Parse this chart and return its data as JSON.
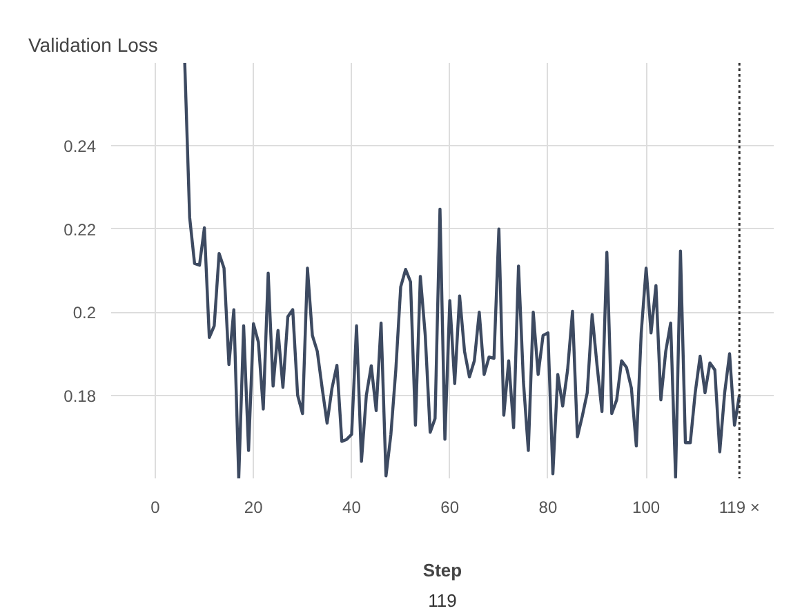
{
  "chart_data": {
    "type": "line",
    "title": "Validation Loss",
    "xlabel": "Step",
    "annotations": [
      "119"
    ],
    "x": [
      6,
      7,
      8,
      9,
      10,
      11,
      12,
      13,
      14,
      15,
      16,
      17,
      18,
      19,
      20,
      21,
      22,
      23,
      24,
      25,
      26,
      27,
      28,
      29,
      30,
      31,
      32,
      33,
      34,
      35,
      36,
      37,
      38,
      39,
      40,
      41,
      42,
      43,
      44,
      45,
      46,
      47,
      48,
      49,
      50,
      51,
      52,
      53,
      54,
      55,
      56,
      57,
      58,
      59,
      60,
      61,
      62,
      63,
      64,
      65,
      66,
      67,
      68,
      69,
      70,
      71,
      72,
      73,
      74,
      75,
      76,
      77,
      78,
      79,
      80,
      81,
      82,
      83,
      84,
      85,
      86,
      87,
      88,
      89,
      90,
      91,
      92,
      93,
      94,
      95,
      96,
      97,
      98,
      99,
      100,
      101,
      102,
      103,
      104,
      105,
      106,
      107,
      108,
      109,
      110,
      111,
      112,
      113,
      114,
      115,
      116,
      117,
      118,
      119
    ],
    "series": [
      {
        "color": "#3d4a61",
        "values": [
          0.26,
          0.2228,
          0.2117,
          0.2113,
          0.2203,
          0.1939,
          0.1967,
          0.2141,
          0.2106,
          0.1874,
          0.2006,
          0.16,
          0.1967,
          0.1667,
          0.1972,
          0.1928,
          0.1767,
          0.2094,
          0.1822,
          0.1956,
          0.1819,
          0.1989,
          0.2006,
          0.18,
          0.1756,
          0.2106,
          0.1944,
          0.1906,
          0.1817,
          0.1733,
          0.1817,
          0.1872,
          0.1689,
          0.1694,
          0.1706,
          0.1967,
          0.1641,
          0.18,
          0.1871,
          0.1763,
          0.1974,
          0.1606,
          0.1706,
          0.1861,
          0.2061,
          0.2103,
          0.2073,
          0.1728,
          0.2086,
          0.1944,
          0.1711,
          0.1744,
          0.2248,
          0.1694,
          0.2028,
          0.1828,
          0.2039,
          0.1906,
          0.1844,
          0.1883,
          0.2,
          0.185,
          0.1892,
          0.1889,
          0.22,
          0.1752,
          0.1883,
          0.1722,
          0.2111,
          0.1833,
          0.1667,
          0.2,
          0.185,
          0.1944,
          0.195,
          0.1611,
          0.185,
          0.1774,
          0.1861,
          0.2002,
          0.17,
          0.175,
          0.1806,
          0.1994,
          0.1872,
          0.1761,
          0.2144,
          0.1756,
          0.1789,
          0.1883,
          0.1867,
          0.1817,
          0.1678,
          0.195,
          0.2106,
          0.195,
          0.2064,
          0.1789,
          0.1906,
          0.1974,
          0.1603,
          0.2147,
          0.1686,
          0.1686,
          0.1806,
          0.1894,
          0.1806,
          0.1878,
          0.1861,
          0.1664,
          0.1806,
          0.19,
          0.1728,
          0.18
        ]
      }
    ],
    "xlim": [
      -9,
      126
    ],
    "ylim": [
      0.16,
      0.26
    ],
    "xticks": [
      0,
      20,
      40,
      60,
      80,
      100
    ],
    "yticks": [
      0.18,
      {
        "value": 0.2,
        "label": "0.2"
      },
      0.22,
      0.24
    ],
    "grid": true,
    "ref_lines": [
      {
        "axis": "x",
        "value": 119,
        "label": "119 ×",
        "color": "#333333",
        "line_style": "dotted"
      }
    ]
  }
}
